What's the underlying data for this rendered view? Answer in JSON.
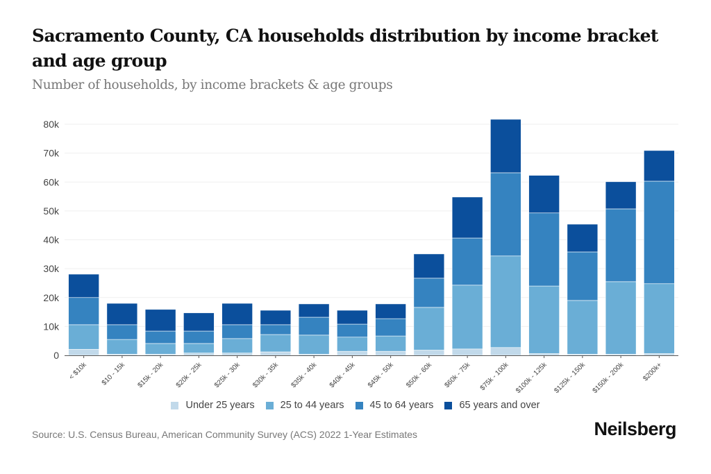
{
  "header": {
    "title": "Sacramento County, CA households distribution by income bracket and age group",
    "subtitle": "Number of households, by income brackets & age groups"
  },
  "footer": {
    "source": "Source: U.S. Census Bureau, American Community Survey (ACS) 2022 1-Year Estimates",
    "brand": "Neilsberg"
  },
  "chart_data": {
    "type": "bar",
    "stacked": true,
    "title": "Sacramento County, CA households distribution by income bracket and age group",
    "subtitle": "Number of households, by income brackets & age groups",
    "xlabel": "",
    "ylabel": "",
    "ylim": [
      0,
      80000
    ],
    "yticks": [
      0,
      10000,
      20000,
      30000,
      40000,
      50000,
      60000,
      70000,
      80000
    ],
    "ytick_labels": [
      "0",
      "10k",
      "20k",
      "30k",
      "40k",
      "50k",
      "60k",
      "70k",
      "80k"
    ],
    "grid": true,
    "legend_position": "bottom-center",
    "categories": [
      "< $10k",
      "$10 - 15k",
      "$15k - 20k",
      "$20k - 25k",
      "$25k - 30k",
      "$30k - 35k",
      "$35k - 40k",
      "$40k - 45k",
      "$45k - 50k",
      "$50k - 60k",
      "$60k - 75k",
      "$75k - 100k",
      "$100k - 125k",
      "$125k - 150k",
      "$150k - 200k",
      "$200k+"
    ],
    "series": [
      {
        "name": "Under 25 years",
        "color": "#c1d9ea",
        "values": [
          2100,
          400,
          400,
          800,
          800,
          1200,
          400,
          1400,
          1400,
          1800,
          2200,
          2700,
          600,
          400,
          400,
          600
        ]
      },
      {
        "name": "25 to 44 years",
        "color": "#6aaed6",
        "values": [
          8500,
          5100,
          3700,
          3300,
          5000,
          6000,
          6600,
          4900,
          5300,
          14800,
          22100,
          31700,
          23400,
          18600,
          25100,
          24200
        ]
      },
      {
        "name": "45 to 64 years",
        "color": "#3583c0",
        "values": [
          9400,
          5100,
          4300,
          4300,
          4800,
          3400,
          6200,
          4500,
          6000,
          10100,
          16300,
          28800,
          25300,
          16800,
          25200,
          35500
        ]
      },
      {
        "name": "65 years and over",
        "color": "#0b4f9c",
        "values": [
          8100,
          7400,
          7500,
          6300,
          7400,
          5000,
          4600,
          4800,
          5100,
          8400,
          14200,
          18500,
          13000,
          9600,
          9400,
          10600
        ]
      }
    ]
  }
}
